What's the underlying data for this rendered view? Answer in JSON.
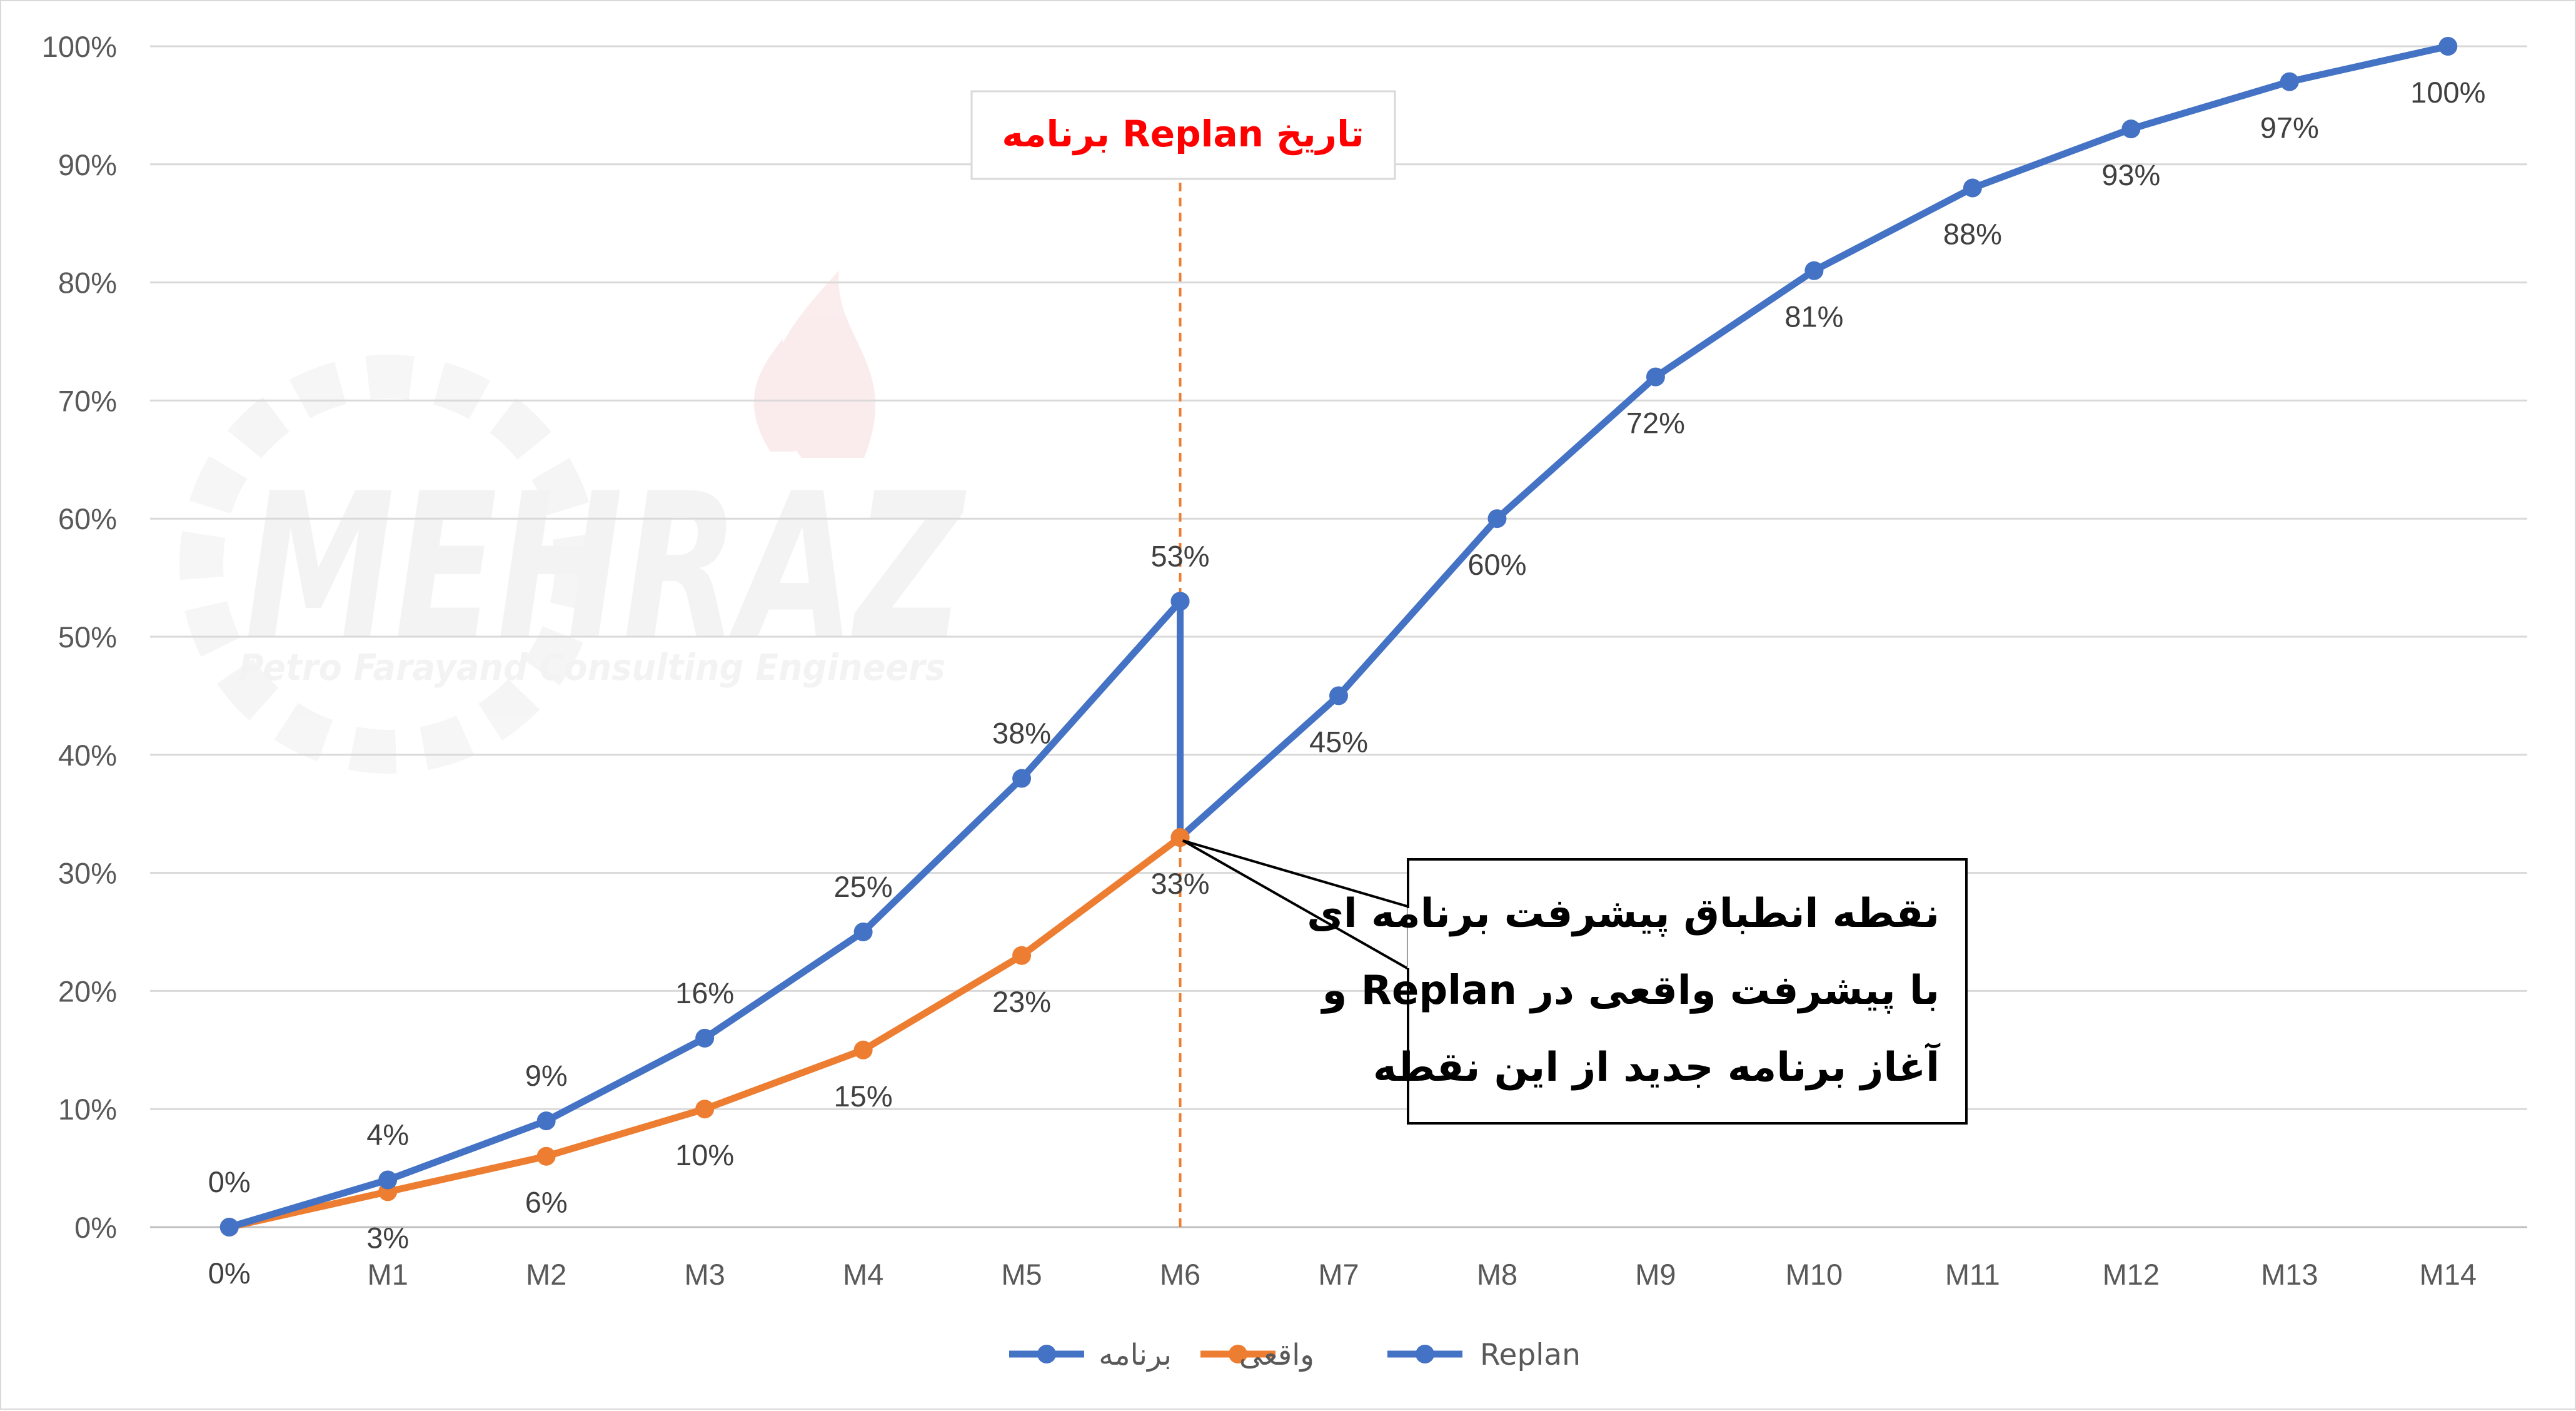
{
  "chart_data": {
    "type": "line",
    "categories": [
      "",
      "M1",
      "M2",
      "M3",
      "M4",
      "M5",
      "M6",
      "M7",
      "M8",
      "M9",
      "M10",
      "M11",
      "M12",
      "M13",
      "M14"
    ],
    "y_ticks": [
      "0%",
      "10%",
      "20%",
      "30%",
      "40%",
      "50%",
      "60%",
      "70%",
      "80%",
      "90%",
      "100%"
    ],
    "ylim": [
      0,
      100
    ],
    "grid": true,
    "legend_position": "bottom",
    "series": [
      {
        "name": "برنامه",
        "color": "#4472c4",
        "x": [
          0,
          1,
          2,
          3,
          4,
          5,
          6
        ],
        "values": [
          0,
          4,
          9,
          16,
          25,
          38,
          53
        ],
        "labels": [
          "0%",
          "4%",
          "9%",
          "16%",
          "25%",
          "38%",
          "53%"
        ]
      },
      {
        "name": "واقعی",
        "color": "#ed7d31",
        "x": [
          0,
          1,
          2,
          3,
          4,
          5,
          6
        ],
        "values": [
          0,
          3,
          6,
          10,
          15,
          23,
          33
        ],
        "labels": [
          "0%",
          "3%",
          "6%",
          "10%",
          "15%",
          "23%",
          "33%"
        ]
      },
      {
        "name": "Replan",
        "color": "#4472c4",
        "x": [
          6,
          6,
          7,
          8,
          9,
          10,
          11,
          12,
          13,
          14
        ],
        "values": [
          53,
          33,
          45,
          60,
          72,
          81,
          88,
          93,
          97,
          100
        ],
        "labels": [
          "",
          "",
          "45%",
          "60%",
          "72%",
          "81%",
          "88%",
          "93%",
          "97%",
          "100%"
        ]
      }
    ],
    "vertical_marker": {
      "x": 6,
      "color": "#ed7d31"
    },
    "annotations": {
      "replan_date": "تاریخ Replan برنامه",
      "callout_lines": [
        "نقطه انطباق پیشرفت برنامه ای",
        "با پیشرفت واقعی در Replan و",
        "آغاز برنامه جدید از این نقطه"
      ]
    }
  },
  "watermark": {
    "logo_text": "MEHRAZ",
    "tagline": "Petro Farayand Consulting Engineers"
  }
}
